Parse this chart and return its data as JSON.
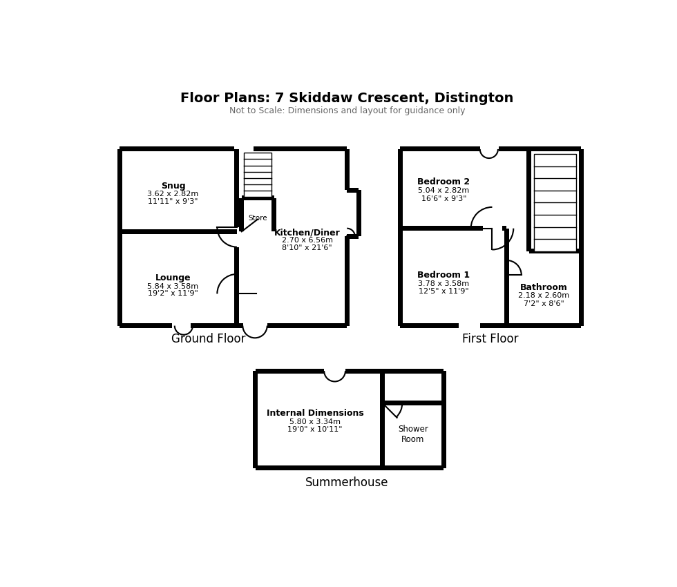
{
  "title": "Floor Plans: 7 Skiddaw Crescent, Distington",
  "subtitle": "Not to Scale: Dimensions and layout for guidance only",
  "bg_color": "#ffffff",
  "wall_thickness": 9,
  "rooms": {
    "snug": {
      "label": "Snug",
      "dim1": "3.62 x 2.82m",
      "dim2": "11'11\" x 9'3\""
    },
    "lounge": {
      "label": "Lounge",
      "dim1": "5.84 x 3.58m",
      "dim2": "19'2\" x 11'9\""
    },
    "kitchen": {
      "label": "Kitchen/Diner",
      "dim1": "2.70 x 6.56m",
      "dim2": "8'10\" x 21'6\""
    },
    "store": {
      "label": "Store"
    },
    "bedroom2": {
      "label": "Bedroom 2",
      "dim1": "5.04 x 2.82m",
      "dim2": "16'6\" x 9'3\""
    },
    "bedroom1": {
      "label": "Bedroom 1",
      "dim1": "3.78 x 3.58m",
      "dim2": "12'5\" x 11'9\""
    },
    "bathroom": {
      "label": "Bathroom",
      "dim1": "2.18 x 2.60m",
      "dim2": "7'2\" x 8'6\""
    },
    "summerhouse": {
      "label": "Internal Dimensions",
      "dim1": "5.80 x 3.34m",
      "dim2": "19'0\" x 10'11\""
    },
    "shower": {
      "label": "Shower\nRoom"
    }
  },
  "floor_labels": {
    "ground": "Ground Floor",
    "first": "First Floor",
    "summer": "Summerhouse"
  }
}
